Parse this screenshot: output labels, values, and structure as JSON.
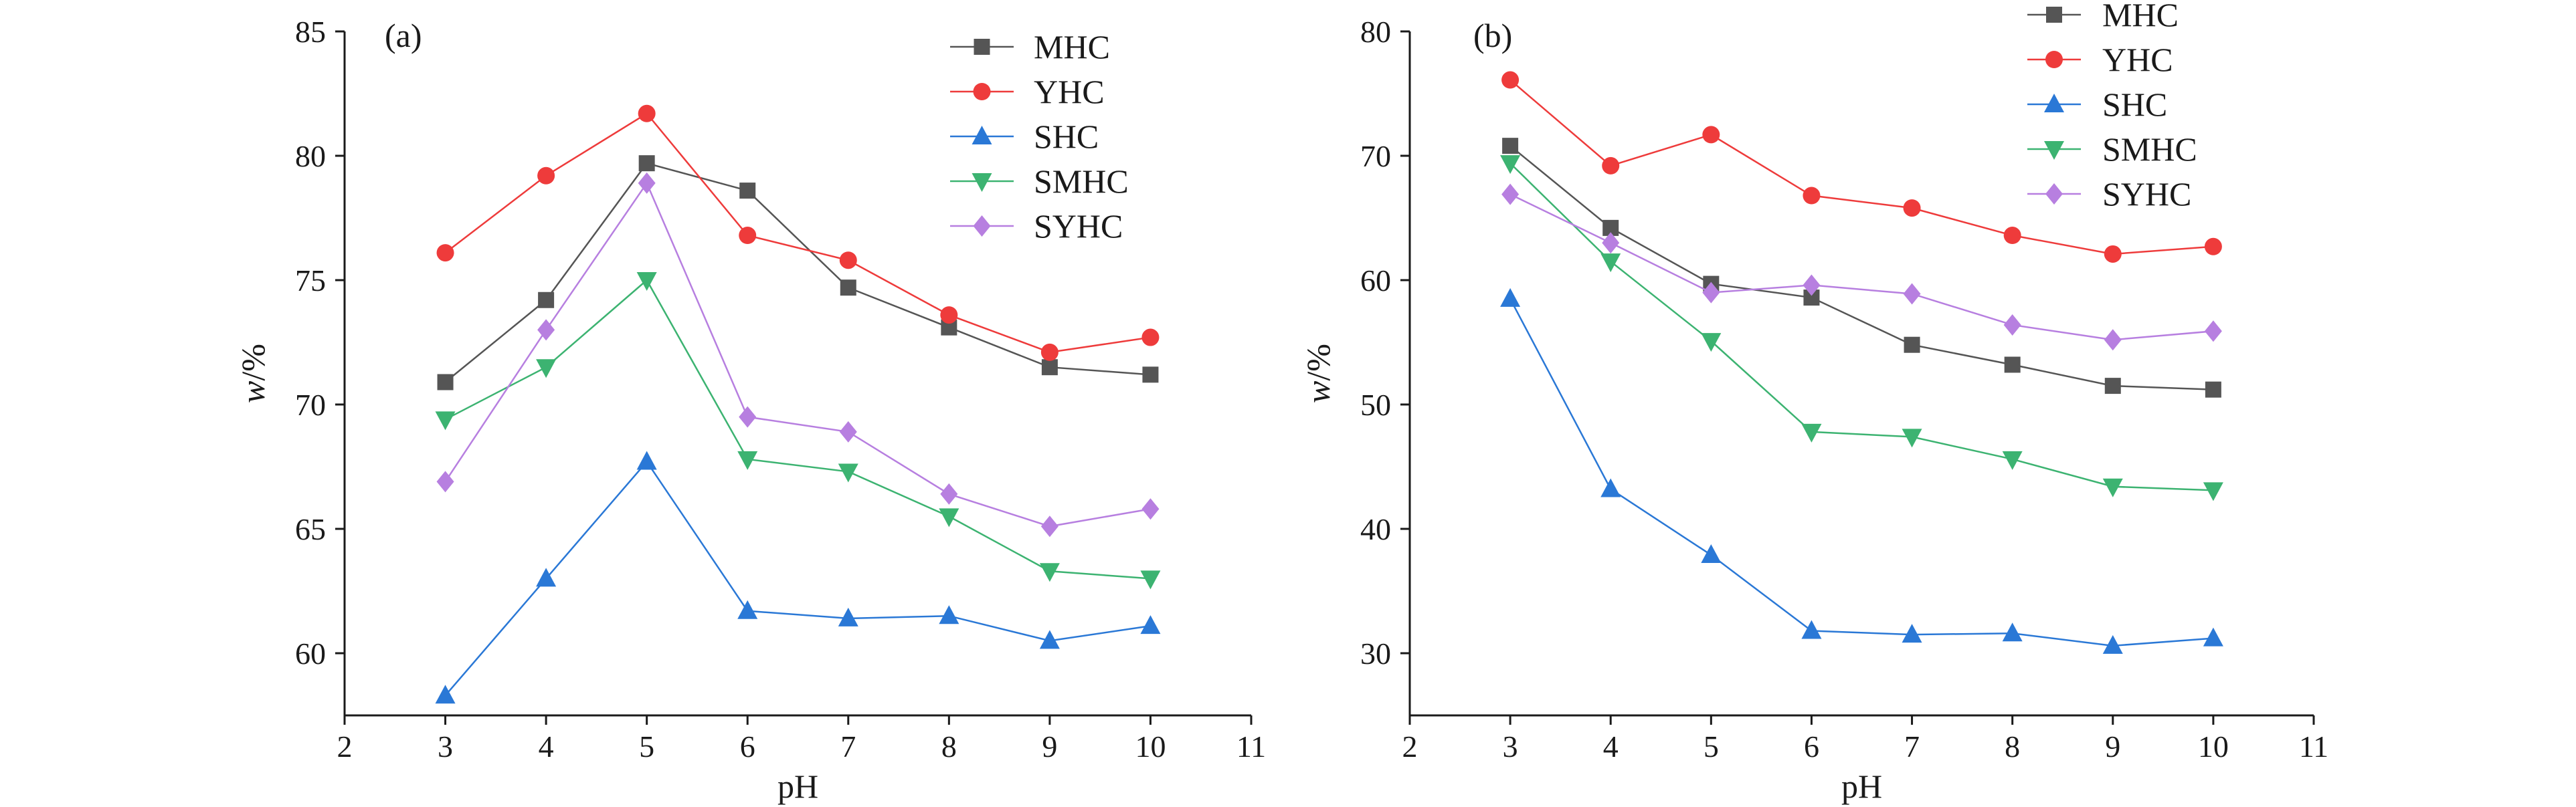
{
  "chart_data": [
    {
      "type": "line",
      "panel_label": "(a)",
      "xlabel": "pH",
      "ylabel_italic": "w",
      "ylabel_unit": "/%",
      "xlim": [
        2,
        11
      ],
      "ylim": [
        57.5,
        85
      ],
      "xticks": [
        2,
        3,
        4,
        5,
        6,
        7,
        8,
        9,
        10,
        11
      ],
      "yticks": [
        60,
        65,
        70,
        75,
        80,
        85
      ],
      "x": [
        3,
        4,
        5,
        6,
        7,
        8,
        9,
        10
      ],
      "legend_position": "top-right",
      "grid": false,
      "series": [
        {
          "name": "MHC",
          "color": "#555555",
          "marker": "square",
          "values": [
            70.9,
            74.2,
            79.7,
            78.6,
            74.7,
            73.1,
            71.5,
            71.2
          ]
        },
        {
          "name": "YHC",
          "color": "#ee3b3b",
          "marker": "circle",
          "values": [
            76.1,
            79.2,
            81.7,
            76.8,
            75.8,
            73.6,
            72.1,
            72.7
          ]
        },
        {
          "name": "SHC",
          "color": "#2a78d6",
          "marker": "triangle-up",
          "values": [
            58.3,
            63.0,
            67.7,
            61.7,
            61.4,
            61.5,
            60.5,
            61.1
          ]
        },
        {
          "name": "SMHC",
          "color": "#3cb371",
          "marker": "triangle-down",
          "values": [
            69.4,
            71.5,
            75.0,
            67.8,
            67.3,
            65.5,
            63.3,
            63.0
          ]
        },
        {
          "name": "SYHC",
          "color": "#b77fe0",
          "marker": "diamond",
          "values": [
            66.9,
            73.0,
            78.9,
            69.5,
            68.9,
            66.4,
            65.1,
            65.8
          ]
        }
      ]
    },
    {
      "type": "line",
      "panel_label": "(b)",
      "xlabel": "pH",
      "ylabel_italic": "w",
      "ylabel_unit": "/%",
      "xlim": [
        2,
        11
      ],
      "ylim": [
        25,
        80
      ],
      "xticks": [
        2,
        3,
        4,
        5,
        6,
        7,
        8,
        9,
        10,
        11
      ],
      "yticks": [
        30,
        40,
        50,
        60,
        70,
        80
      ],
      "x": [
        3,
        4,
        5,
        6,
        7,
        8,
        9,
        10
      ],
      "legend_position": "top-right",
      "grid": false,
      "series": [
        {
          "name": "MHC",
          "color": "#555555",
          "marker": "square",
          "values": [
            70.8,
            64.2,
            59.7,
            58.6,
            54.8,
            53.2,
            51.5,
            51.2
          ]
        },
        {
          "name": "YHC",
          "color": "#ee3b3b",
          "marker": "circle",
          "values": [
            76.1,
            69.2,
            71.7,
            66.8,
            65.8,
            63.6,
            62.1,
            62.7
          ]
        },
        {
          "name": "SHC",
          "color": "#2a78d6",
          "marker": "triangle-up",
          "values": [
            58.5,
            43.2,
            37.9,
            31.8,
            31.5,
            31.6,
            30.6,
            31.2
          ]
        },
        {
          "name": "SMHC",
          "color": "#3cb371",
          "marker": "triangle-down",
          "values": [
            69.4,
            61.5,
            55.1,
            47.8,
            47.4,
            45.6,
            43.4,
            43.1
          ]
        },
        {
          "name": "SYHC",
          "color": "#b77fe0",
          "marker": "diamond",
          "values": [
            66.9,
            63.0,
            59.0,
            59.6,
            58.9,
            56.4,
            55.2,
            55.9
          ]
        }
      ]
    }
  ]
}
